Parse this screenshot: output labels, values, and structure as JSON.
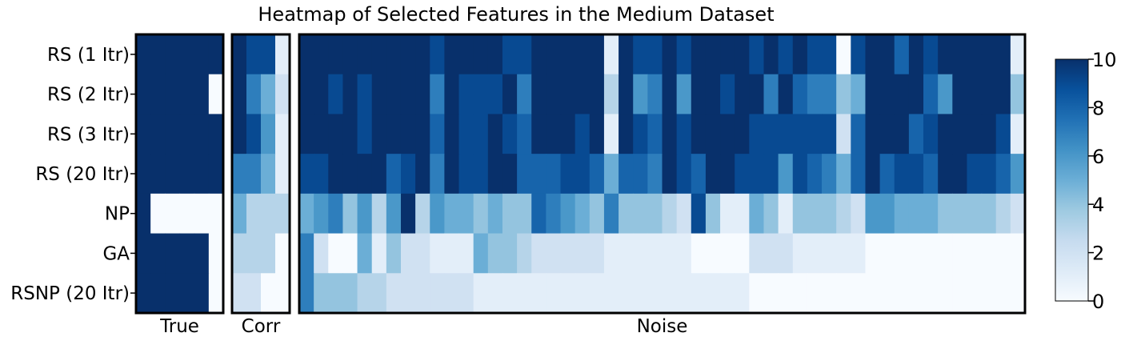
{
  "chart_data": {
    "type": "heatmap",
    "title": "Heatmap of Selected Features in the Medium Dataset",
    "rows": [
      "RS (1 Itr)",
      "RS (2 Itr)",
      "RS (3 Itr)",
      "RS (20 Itr)",
      "NP",
      "GA",
      "RSNP (20 Itr)"
    ],
    "panels": [
      {
        "label": "True",
        "values": [
          [
            10,
            10,
            10,
            10,
            10,
            10
          ],
          [
            10,
            10,
            10,
            10,
            10,
            0
          ],
          [
            10,
            10,
            10,
            10,
            10,
            10
          ],
          [
            10,
            10,
            10,
            10,
            10,
            10
          ],
          [
            10,
            0,
            0,
            0,
            0,
            0
          ],
          [
            10,
            10,
            10,
            10,
            10,
            0
          ],
          [
            10,
            10,
            10,
            10,
            10,
            0
          ]
        ]
      },
      {
        "label": "Corr",
        "values": [
          [
            10,
            9,
            9,
            1
          ],
          [
            10,
            7,
            5,
            2
          ],
          [
            10,
            9,
            6,
            1
          ],
          [
            7,
            7,
            5,
            1
          ],
          [
            5,
            3,
            3,
            3
          ],
          [
            3,
            3,
            3,
            0
          ],
          [
            2,
            2,
            0,
            0
          ]
        ]
      },
      {
        "label": "Noise",
        "values": [
          [
            10,
            10,
            10,
            10,
            10,
            10,
            10,
            10,
            10,
            9,
            10,
            10,
            10,
            10,
            9,
            9,
            10,
            10,
            10,
            10,
            10,
            1,
            10,
            9,
            9,
            10,
            9,
            10,
            10,
            10,
            10,
            9,
            10,
            9,
            10,
            9,
            9,
            0,
            9,
            10,
            10,
            8,
            10,
            9,
            10,
            10,
            10,
            10,
            10,
            1
          ],
          [
            10,
            10,
            9,
            10,
            9,
            10,
            10,
            10,
            10,
            7,
            10,
            9,
            9,
            9,
            10,
            7,
            10,
            10,
            10,
            10,
            10,
            3,
            10,
            6,
            7,
            10,
            6,
            10,
            10,
            9,
            10,
            10,
            7,
            10,
            8,
            7,
            7,
            4,
            5,
            10,
            10,
            10,
            10,
            8,
            6,
            10,
            10,
            10,
            10,
            4
          ],
          [
            10,
            10,
            10,
            10,
            9,
            10,
            10,
            10,
            10,
            8,
            10,
            9,
            9,
            10,
            9,
            8,
            10,
            10,
            10,
            9,
            10,
            1,
            10,
            9,
            8,
            10,
            9,
            10,
            10,
            10,
            10,
            9,
            9,
            9,
            9,
            9,
            9,
            2,
            8,
            10,
            10,
            10,
            8,
            9,
            10,
            10,
            10,
            10,
            9,
            1
          ],
          [
            9,
            9,
            10,
            10,
            10,
            10,
            8,
            9,
            10,
            7,
            10,
            9,
            9,
            10,
            10,
            8,
            8,
            8,
            9,
            9,
            8,
            5,
            8,
            8,
            7,
            10,
            9,
            8,
            10,
            10,
            9,
            9,
            9,
            6,
            9,
            8,
            7,
            5,
            8,
            10,
            8,
            9,
            9,
            8,
            10,
            10,
            9,
            9,
            8,
            6
          ],
          [
            5,
            6,
            7,
            4,
            6,
            3,
            6,
            10,
            3,
            6,
            5,
            5,
            4,
            5,
            4,
            4,
            8,
            7,
            6,
            5,
            4,
            7,
            4,
            4,
            4,
            3,
            2,
            9,
            4,
            1,
            1,
            5,
            4,
            1,
            4,
            4,
            4,
            3,
            2,
            6,
            6,
            5,
            5,
            5,
            4,
            4,
            4,
            4,
            3,
            2
          ],
          [
            7,
            2,
            0,
            0,
            5,
            1,
            4,
            2,
            2,
            1,
            1,
            1,
            5,
            4,
            4,
            3,
            2,
            2,
            2,
            2,
            2,
            1,
            1,
            1,
            1,
            1,
            1,
            0,
            0,
            0,
            0,
            2,
            2,
            2,
            1,
            1,
            1,
            1,
            1,
            0,
            0,
            0,
            0,
            0,
            0,
            0,
            0,
            0,
            0,
            0
          ],
          [
            7,
            4,
            4,
            4,
            3,
            3,
            2,
            2,
            2,
            2,
            2,
            2,
            1,
            1,
            1,
            1,
            1,
            1,
            1,
            1,
            1,
            1,
            1,
            1,
            1,
            1,
            1,
            1,
            1,
            1,
            1,
            0,
            0,
            0,
            0,
            0,
            0,
            0,
            0,
            0,
            0,
            0,
            0,
            0,
            0,
            0,
            0,
            0,
            0,
            0
          ]
        ]
      }
    ],
    "colorbar": {
      "min": 0,
      "max": 10,
      "ticks": [
        "0",
        "2",
        "4",
        "6",
        "8",
        "10"
      ]
    },
    "colormap": [
      "#f7fbff",
      "#deebf7",
      "#c6dbef",
      "#9ecae1",
      "#6baed6",
      "#4292c6",
      "#2171b5",
      "#08519c",
      "#08306b"
    ]
  }
}
